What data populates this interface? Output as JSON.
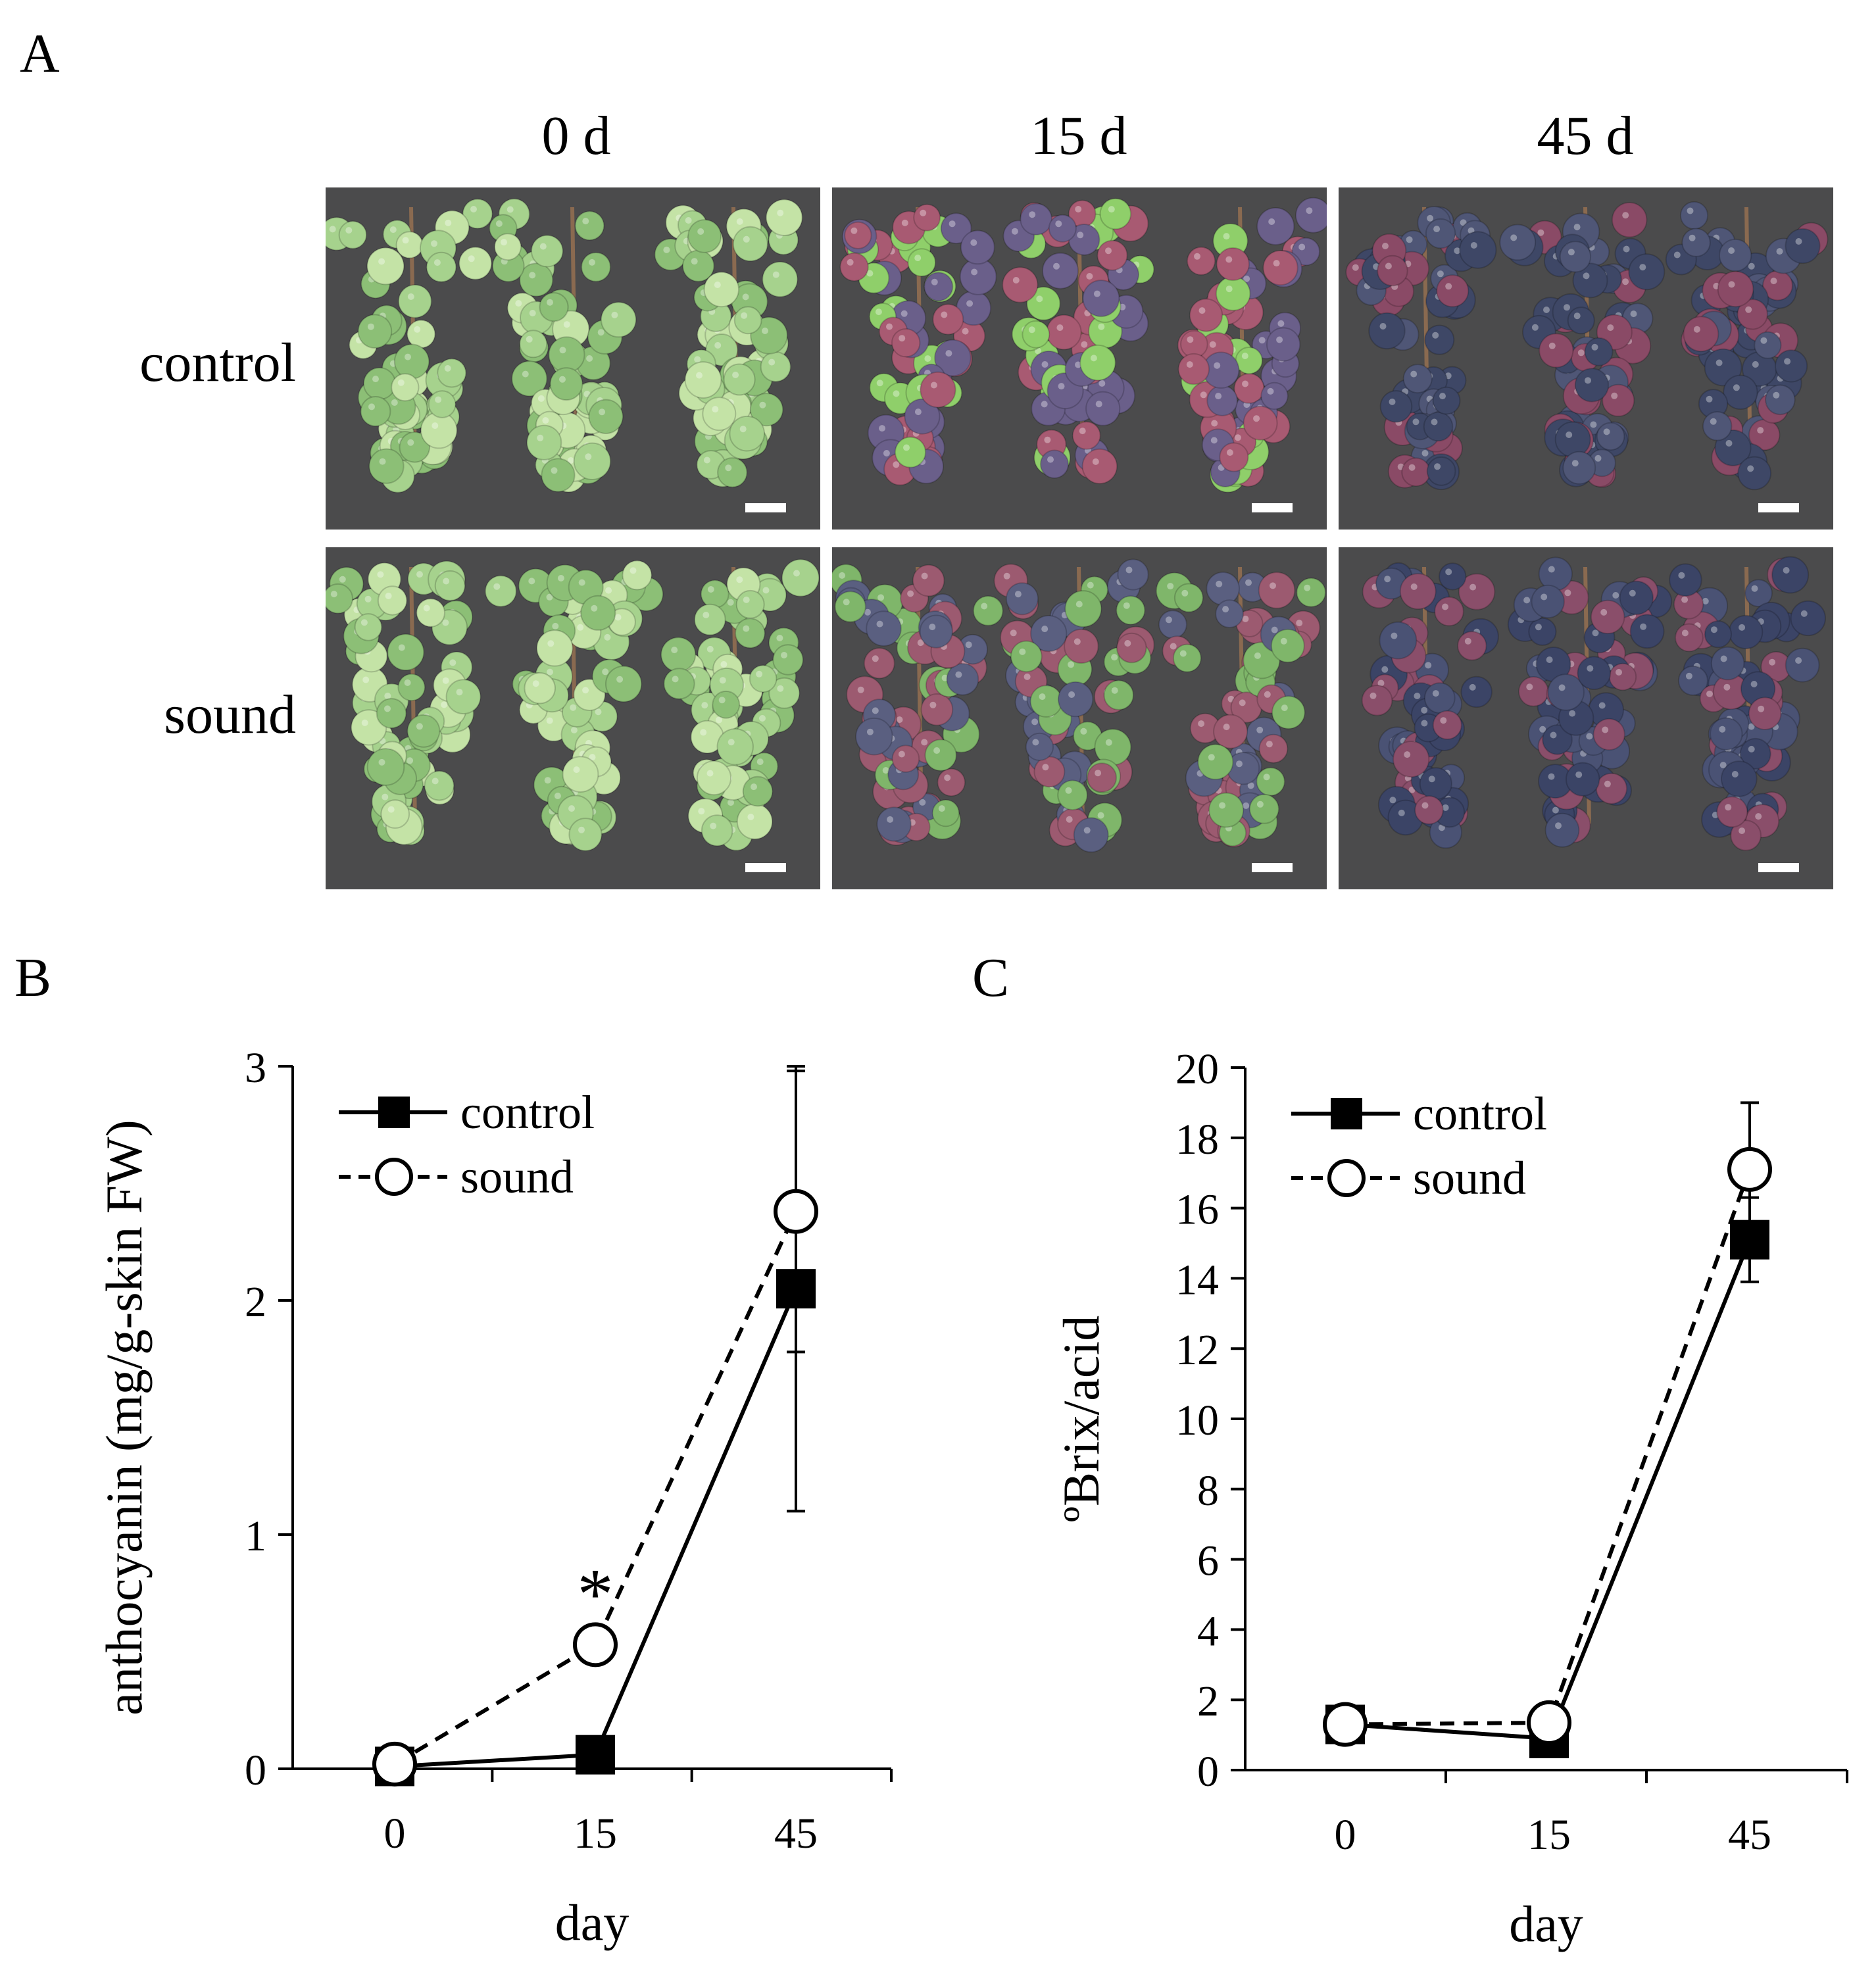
{
  "panel_a": {
    "label": "A",
    "columns": [
      "0 d",
      "15 d",
      "45 d"
    ],
    "rows": [
      "control",
      "sound"
    ],
    "photos": [
      {
        "row": "control",
        "day": "0 d",
        "description_palette": [
          "#a6d28d",
          "#8cbf76",
          "#c4e3a6"
        ]
      },
      {
        "row": "control",
        "day": "15 d",
        "description_palette": [
          "#8fcf6a",
          "#a85a72",
          "#6a5f8a"
        ]
      },
      {
        "row": "control",
        "day": "45 d",
        "description_palette": [
          "#4f5676",
          "#8a4a66",
          "#3e4766"
        ]
      },
      {
        "row": "sound",
        "day": "0 d",
        "description_palette": [
          "#a6d28d",
          "#8cbf76",
          "#c4e3a6"
        ]
      },
      {
        "row": "sound",
        "day": "15 d",
        "description_palette": [
          "#5a5f80",
          "#9c5a70",
          "#7fb66a"
        ]
      },
      {
        "row": "sound",
        "day": "45 d",
        "description_palette": [
          "#4a5274",
          "#3b4466",
          "#8a4e6a"
        ]
      }
    ]
  },
  "chart_data": [
    {
      "panel_label": "B",
      "type": "line",
      "x_categories": [
        "0",
        "15",
        "45"
      ],
      "xlabel": "day",
      "ylabel": "anthocyanin (mg/g-skin FW)",
      "ylim": [
        0,
        3
      ],
      "yticks": [
        "0",
        "1",
        "2",
        "3"
      ],
      "series": [
        {
          "name": "control",
          "marker": "filled-square",
          "line": "solid",
          "values": [
            0.01,
            0.06,
            2.05
          ],
          "errors": [
            0.01,
            0.02,
            0.95
          ]
        },
        {
          "name": "sound",
          "marker": "open-circle",
          "line": "dashed",
          "values": [
            0.02,
            0.53,
            2.38
          ],
          "errors": [
            0.01,
            0.03,
            0.6
          ]
        }
      ],
      "annotations": [
        {
          "text": "*",
          "category": "15"
        }
      ],
      "legend": "top-left"
    },
    {
      "panel_label": "C",
      "type": "line",
      "x_categories": [
        "0",
        "15",
        "45"
      ],
      "xlabel": "day",
      "ylabel": "ºBrix/acid",
      "ylim": [
        0,
        20
      ],
      "yticks": [
        "0",
        "2",
        "4",
        "6",
        "8",
        "10",
        "12",
        "14",
        "16",
        "18",
        "20"
      ],
      "series": [
        {
          "name": "control",
          "marker": "filled-square",
          "line": "solid",
          "values": [
            1.3,
            0.9,
            15.1
          ],
          "errors": [
            0.1,
            0.1,
            1.2
          ]
        },
        {
          "name": "sound",
          "marker": "open-circle",
          "line": "dashed",
          "values": [
            1.3,
            1.35,
            17.1
          ],
          "errors": [
            0.1,
            0.1,
            1.9
          ]
        }
      ],
      "legend": "top-left"
    }
  ]
}
